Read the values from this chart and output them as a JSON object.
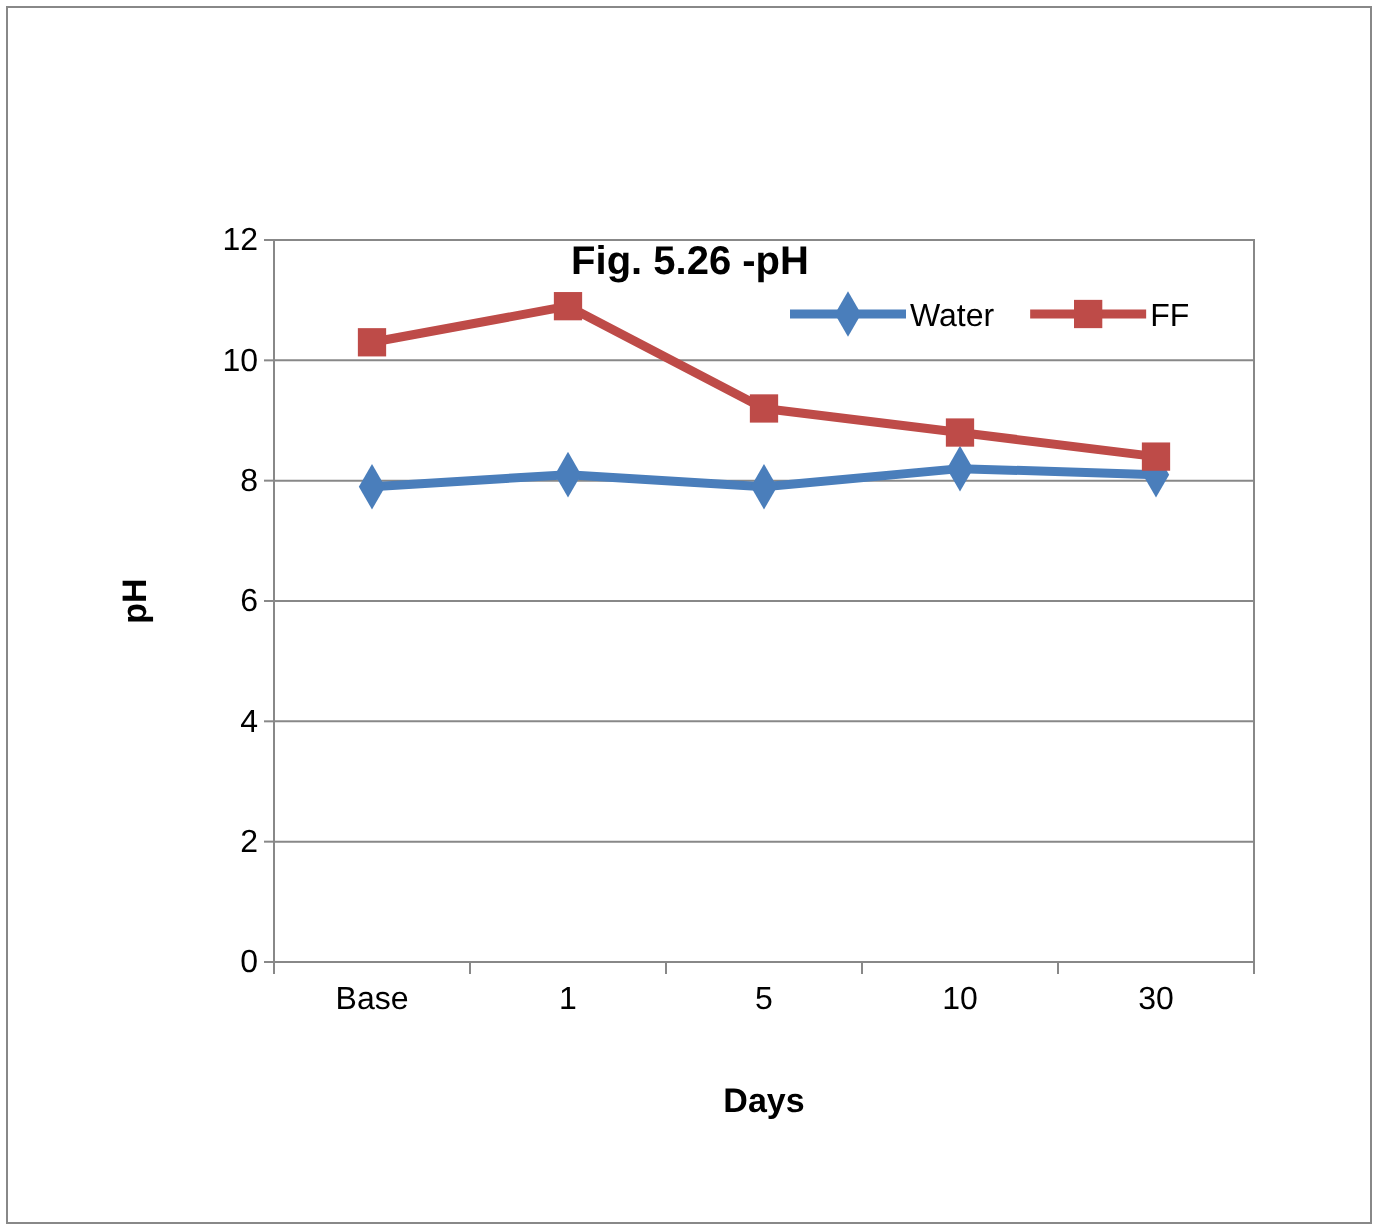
{
  "chart_data": {
    "type": "line",
    "title": "Fig. 5.26 -pH",
    "xlabel": "Days",
    "ylabel": "pH",
    "categories": [
      "Base",
      "1",
      "5",
      "10",
      "30"
    ],
    "series": [
      {
        "name": "Water",
        "color": "#4a7ebb",
        "marker": "diamond",
        "values": [
          7.9,
          8.1,
          7.9,
          8.2,
          8.1
        ]
      },
      {
        "name": "FF",
        "color": "#be4b48",
        "marker": "square",
        "values": [
          10.3,
          10.9,
          9.2,
          8.8,
          8.4
        ]
      }
    ],
    "ylim": [
      0,
      12
    ],
    "yticks": [
      0,
      2,
      4,
      6,
      8,
      10,
      12
    ],
    "grid": "y",
    "legend": "top right"
  }
}
